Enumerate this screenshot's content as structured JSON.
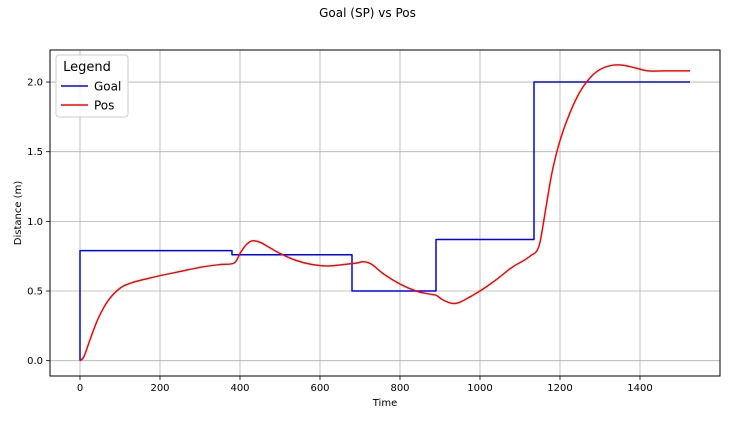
{
  "chart_data": {
    "type": "line",
    "title": "Goal (SP) vs Pos",
    "xlabel": "Time",
    "ylabel": "Distance (m)",
    "xlim": [
      -75,
      1600
    ],
    "ylim": [
      -0.11,
      2.23
    ],
    "xticks": [
      {
        "value": 0,
        "label": "0"
      },
      {
        "value": 200,
        "label": "200"
      },
      {
        "value": 400,
        "label": "400"
      },
      {
        "value": 600,
        "label": "600"
      },
      {
        "value": 800,
        "label": "800"
      },
      {
        "value": 1000,
        "label": "1000"
      },
      {
        "value": 1200,
        "label": "1200"
      },
      {
        "value": 1400,
        "label": "1400"
      }
    ],
    "yticks": [
      {
        "value": 0.0,
        "label": "0.0"
      },
      {
        "value": 0.5,
        "label": "0.5"
      },
      {
        "value": 1.0,
        "label": "1.0"
      },
      {
        "value": 1.5,
        "label": "1.5"
      },
      {
        "value": 2.0,
        "label": "2.0"
      }
    ],
    "grid": true,
    "legend": {
      "title": "Legend",
      "placement": "top-left"
    },
    "series": [
      {
        "name": "Goal",
        "color": "#0000ff",
        "step": true,
        "x": [
          0,
          0,
          380,
          380,
          680,
          680,
          890,
          890,
          1135,
          1135,
          1525
        ],
        "y": [
          0.0,
          0.79,
          0.79,
          0.76,
          0.76,
          0.5,
          0.5,
          0.87,
          0.87,
          2.0,
          2.0
        ]
      },
      {
        "name": "Pos",
        "color": "#ff0000",
        "step": false,
        "x": [
          0,
          10,
          25,
          45,
          70,
          100,
          130,
          170,
          200,
          250,
          300,
          350,
          385,
          400,
          415,
          430,
          450,
          475,
          500,
          540,
          580,
          620,
          660,
          690,
          710,
          730,
          760,
          800,
          840,
          870,
          890,
          905,
          920,
          935,
          950,
          970,
          1000,
          1040,
          1080,
          1110,
          1130,
          1140,
          1150,
          1165,
          1180,
          1200,
          1225,
          1250,
          1275,
          1300,
          1330,
          1360,
          1390,
          1420,
          1460,
          1500,
          1525
        ],
        "y": [
          0.0,
          0.03,
          0.15,
          0.3,
          0.43,
          0.52,
          0.56,
          0.59,
          0.61,
          0.64,
          0.67,
          0.69,
          0.7,
          0.77,
          0.83,
          0.86,
          0.85,
          0.81,
          0.77,
          0.72,
          0.69,
          0.68,
          0.69,
          0.7,
          0.71,
          0.69,
          0.62,
          0.55,
          0.5,
          0.48,
          0.47,
          0.44,
          0.42,
          0.41,
          0.42,
          0.45,
          0.5,
          0.58,
          0.67,
          0.72,
          0.76,
          0.78,
          0.85,
          1.1,
          1.35,
          1.58,
          1.78,
          1.93,
          2.03,
          2.09,
          2.12,
          2.12,
          2.1,
          2.08,
          2.08,
          2.08,
          2.08
        ]
      }
    ]
  }
}
